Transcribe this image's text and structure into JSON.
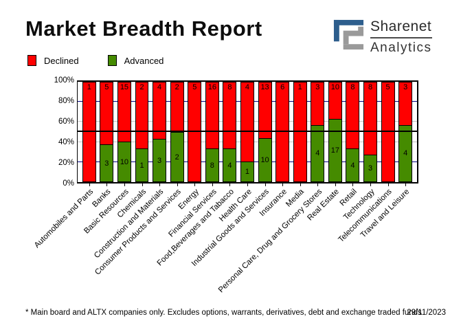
{
  "title": "Market Breadth Report",
  "logo": {
    "line1": "Sharenet",
    "line2": "Analytics",
    "blue": "#2d5e8d",
    "gray": "#9a9a9a"
  },
  "legend": [
    {
      "label": "Declined",
      "color": "#ff0000"
    },
    {
      "label": "Advanced",
      "color": "#458b00"
    }
  ],
  "footer": {
    "note": "* Main board and ALTX companies only. Excludes options, warrants, derivatives, debt and exchange traded funds",
    "date": "29/11/2023"
  },
  "chart_data": {
    "type": "bar",
    "stacked": true,
    "normalized": "percent",
    "title": "Market Breadth Report",
    "categories": [
      "Automobiles and Parts",
      "Banks",
      "Basic Resources",
      "Chemicals",
      "Construction and Materials",
      "Consumer Products and Services",
      "Energy",
      "Financial Services",
      "Food,Beverages and Tabacco",
      "Health Care",
      "Industrial Goods and Services",
      "Insurance",
      "Media",
      "Personal Care, Drug and Grocery Stores",
      "Real Estate",
      "Retail",
      "Technology",
      "Telecommunications",
      "Travel and Leisure"
    ],
    "series": [
      {
        "name": "Declined",
        "color": "#ff0000",
        "values": [
          1,
          5,
          15,
          2,
          4,
          2,
          5,
          16,
          8,
          4,
          13,
          6,
          1,
          3,
          10,
          8,
          8,
          5,
          3
        ]
      },
      {
        "name": "Advanced",
        "color": "#458b00",
        "values": [
          0,
          3,
          10,
          1,
          3,
          2,
          0,
          8,
          4,
          1,
          10,
          0,
          0,
          4,
          17,
          4,
          3,
          0,
          4
        ]
      }
    ],
    "yticks": [
      "0%",
      "20%",
      "40%",
      "60%",
      "80%",
      "100%"
    ],
    "ylim": [
      0,
      100
    ],
    "ylabel": "",
    "xlabel": "",
    "reference_line": 50,
    "gridlines": {
      "navy_levels": [
        20,
        80
      ],
      "navy_color": "#000080",
      "gray_levels": [
        40,
        60
      ],
      "gray_color": "#c0c0c0"
    },
    "legend_position": "top-left"
  }
}
